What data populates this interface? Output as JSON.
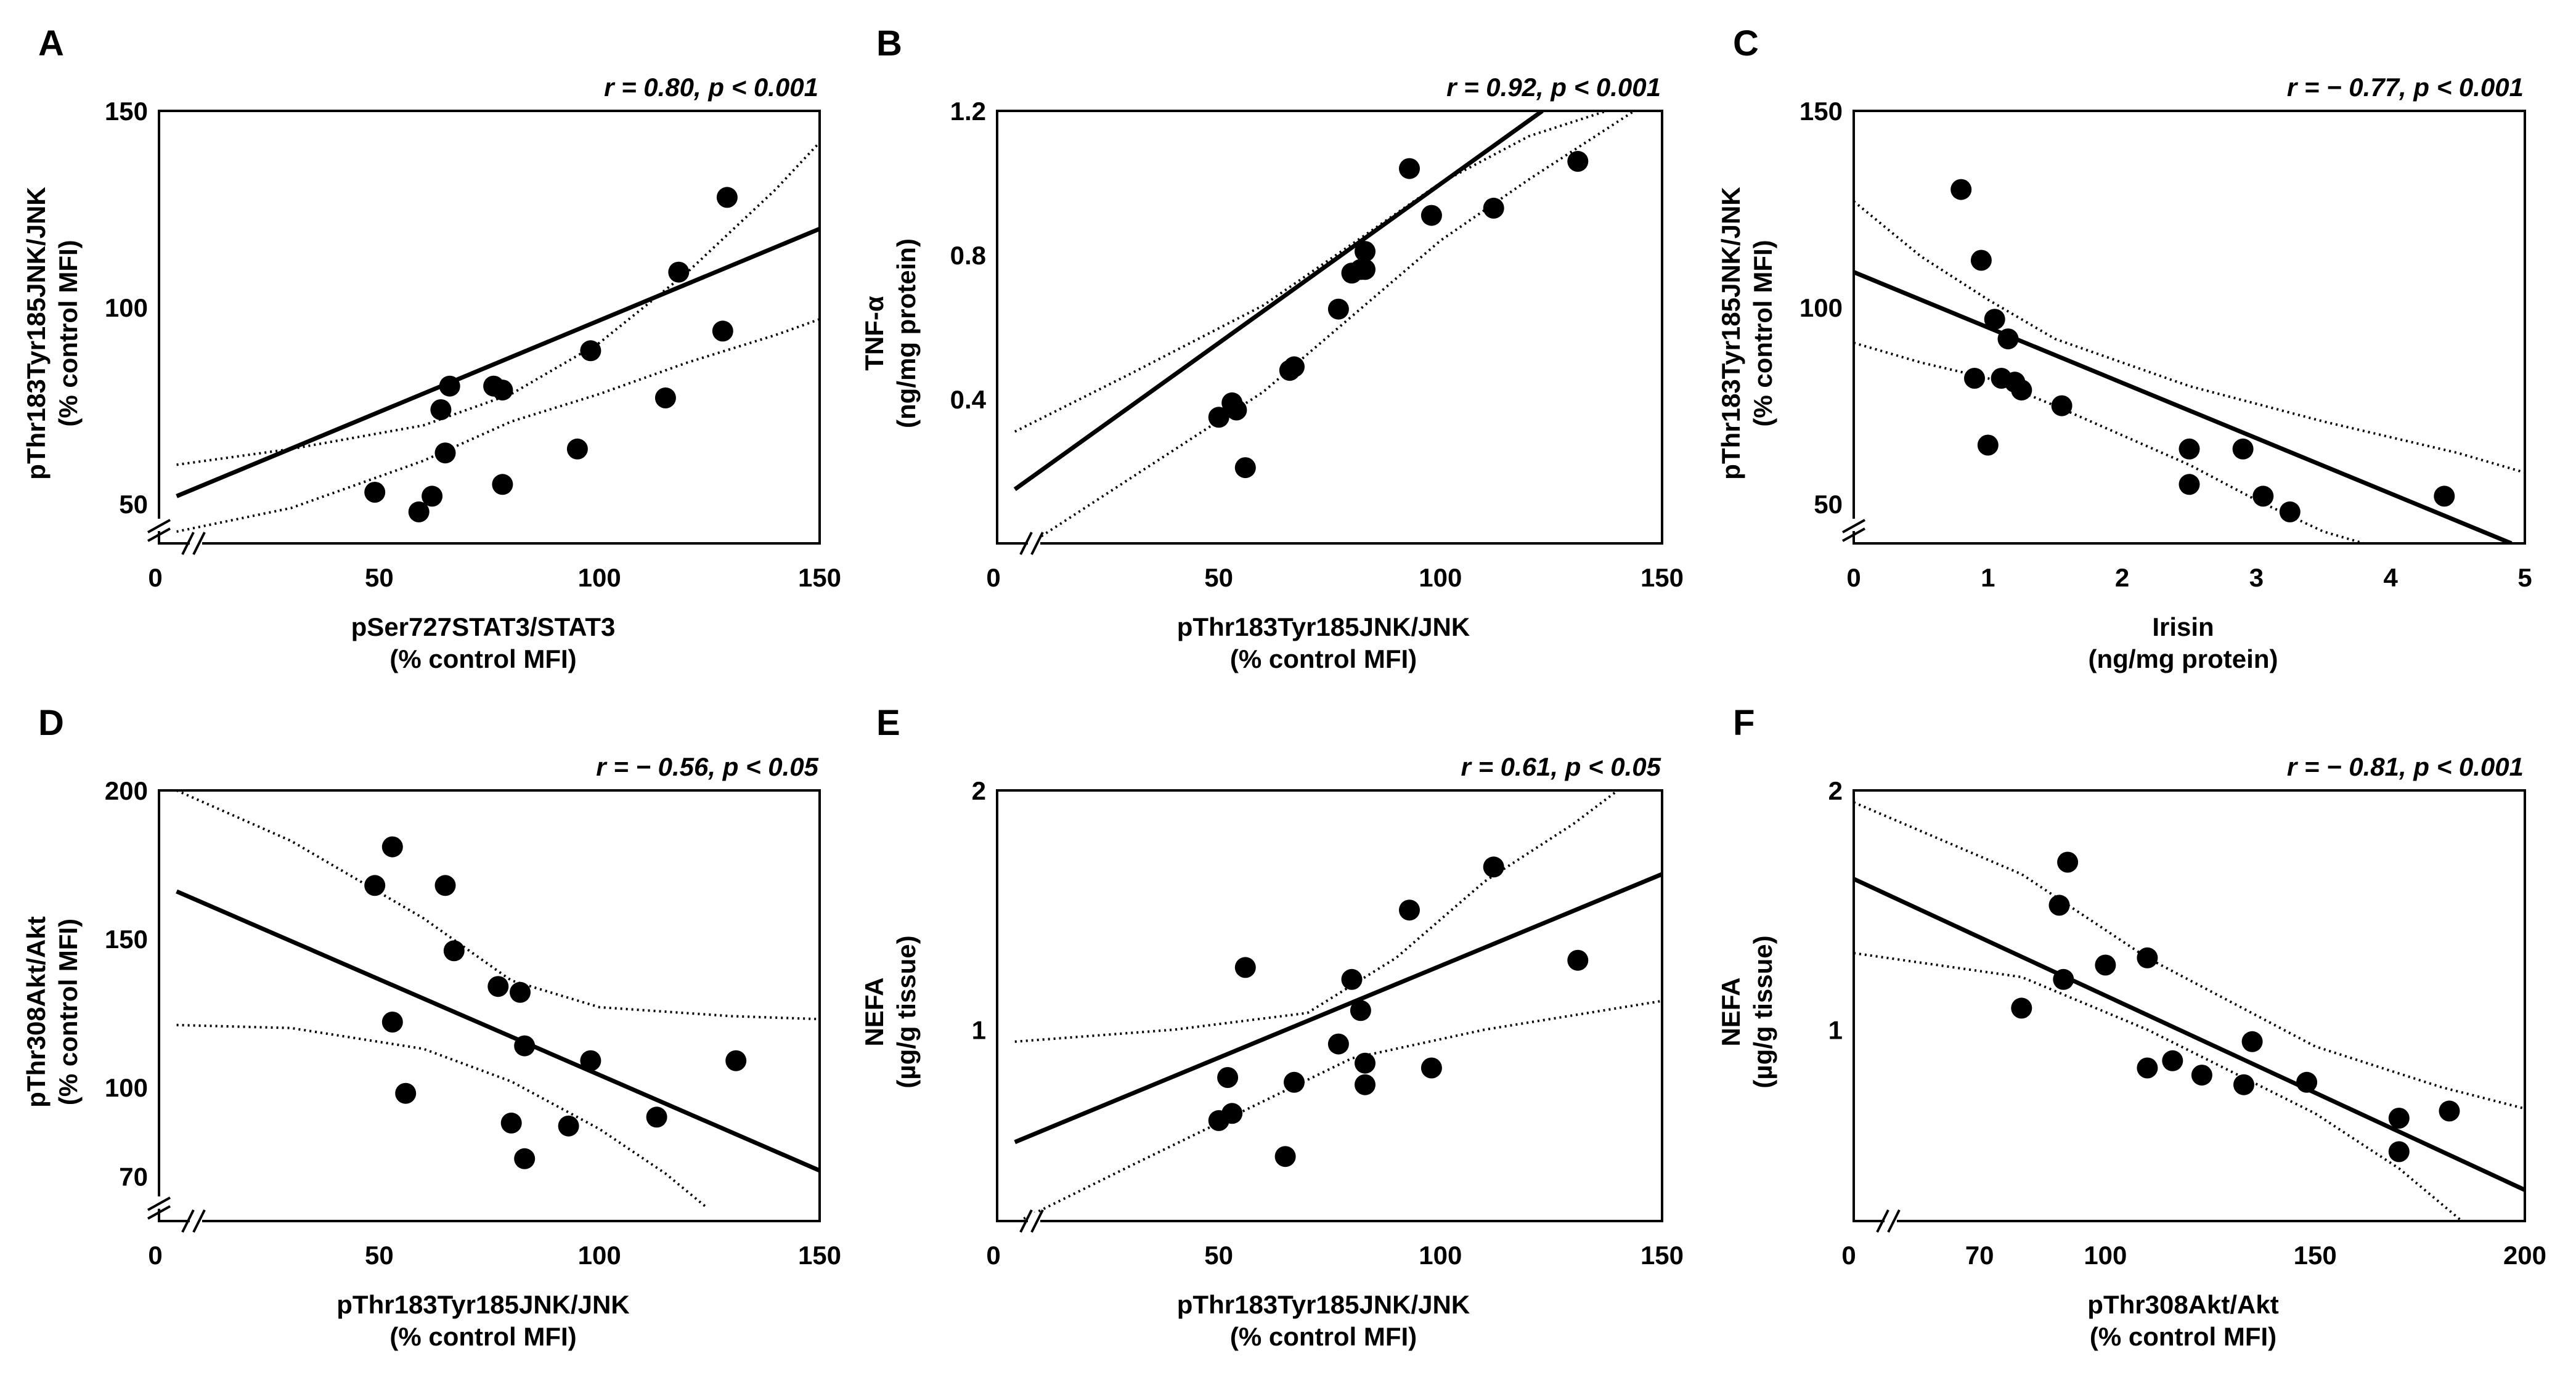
{
  "chart_data": [
    {
      "type": "scatter",
      "panel_label": "A",
      "stat": "r = 0.80, p < 0.001",
      "xlabel": [
        "pSer727STAT3/STAT3",
        "(% control MFI)"
      ],
      "ylabel": [
        "pThr183Tyr185JNK/JNK",
        "(% control MFI)"
      ],
      "xlim": [
        0,
        150
      ],
      "ylim": [
        40,
        150
      ],
      "xticks": [
        0,
        50,
        100,
        150
      ],
      "yticks": [
        50,
        100,
        150
      ],
      "x_break": true,
      "y_break": true,
      "x": [
        49,
        59,
        62,
        64,
        65,
        66,
        76,
        78,
        78,
        95,
        98,
        115,
        118,
        128,
        129
      ],
      "y": [
        53,
        48,
        52,
        74,
        63,
        80,
        80,
        79,
        55,
        64,
        89,
        77,
        109,
        94,
        128
      ],
      "fit": [
        [
          4,
          52
        ],
        [
          150,
          120
        ]
      ],
      "ci_upper": [
        [
          4,
          60
        ],
        [
          30,
          64
        ],
        [
          60,
          70
        ],
        [
          80,
          78
        ],
        [
          100,
          91
        ],
        [
          120,
          109
        ],
        [
          140,
          130
        ],
        [
          150,
          142
        ]
      ],
      "ci_lower": [
        [
          4,
          43
        ],
        [
          30,
          49
        ],
        [
          60,
          61
        ],
        [
          80,
          71
        ],
        [
          100,
          78
        ],
        [
          120,
          86
        ],
        [
          140,
          93
        ],
        [
          150,
          97
        ]
      ]
    },
    {
      "type": "scatter",
      "panel_label": "B",
      "stat": "r = 0.92, p < 0.001",
      "xlabel": [
        "pThr183Tyr185JNK/JNK",
        "(% control MFI)"
      ],
      "ylabel": [
        "TNF-α",
        "(ng/mg protein)"
      ],
      "xlim": [
        0,
        150
      ],
      "ylim": [
        0.0,
        1.2
      ],
      "xticks": [
        0,
        50,
        100,
        150
      ],
      "yticks": [
        0.4,
        0.8,
        1.2
      ],
      "x_break": true,
      "y_break": false,
      "x": [
        50,
        53,
        54,
        56,
        66,
        67,
        77,
        80,
        82,
        83,
        83,
        93,
        98,
        112,
        131
      ],
      "y": [
        0.35,
        0.39,
        0.37,
        0.21,
        0.48,
        0.49,
        0.65,
        0.75,
        0.76,
        0.81,
        0.76,
        1.04,
        0.91,
        0.93,
        1.06
      ],
      "fit": [
        [
          4,
          0.15
        ],
        [
          123,
          1.2
        ]
      ],
      "ci_upper": [
        [
          4,
          0.31
        ],
        [
          30,
          0.47
        ],
        [
          60,
          0.66
        ],
        [
          80,
          0.83
        ],
        [
          100,
          1.0
        ],
        [
          120,
          1.13
        ],
        [
          140,
          1.21
        ]
      ],
      "ci_lower": [
        [
          10,
          0.02
        ],
        [
          30,
          0.18
        ],
        [
          60,
          0.42
        ],
        [
          80,
          0.63
        ],
        [
          100,
          0.84
        ],
        [
          120,
          1.01
        ],
        [
          145,
          1.21
        ]
      ]
    },
    {
      "type": "scatter",
      "panel_label": "C",
      "stat": "r = − 0.77, p < 0.001",
      "xlabel": [
        "Irisin",
        "(ng/mg protein)"
      ],
      "ylabel": [
        "pThr183Tyr185JNK/JNK",
        "(% control MFI)"
      ],
      "xlim": [
        0,
        5
      ],
      "ylim": [
        40,
        150
      ],
      "xticks": [
        0,
        1,
        2,
        3,
        4,
        5
      ],
      "yticks": [
        50,
        100,
        150
      ],
      "x_break": false,
      "y_break": true,
      "x": [
        0.8,
        0.9,
        0.95,
        1.0,
        1.05,
        1.1,
        1.15,
        1.2,
        1.25,
        1.55,
        2.5,
        2.5,
        2.9,
        3.05,
        3.25,
        4.4
      ],
      "y": [
        130,
        82,
        112,
        65,
        97,
        82,
        92,
        81,
        79,
        75,
        55,
        64,
        64,
        52,
        48,
        52
      ],
      "fit": [
        [
          0,
          109
        ],
        [
          4.9,
          40
        ]
      ],
      "ci_upper": [
        [
          0,
          127
        ],
        [
          0.5,
          113
        ],
        [
          1.0,
          102
        ],
        [
          1.5,
          92
        ],
        [
          2.5,
          80
        ],
        [
          3.5,
          71
        ],
        [
          4.5,
          63
        ],
        [
          5,
          58
        ]
      ],
      "ci_lower": [
        [
          0,
          91
        ],
        [
          0.5,
          86
        ],
        [
          1.0,
          82
        ],
        [
          1.5,
          75
        ],
        [
          2.5,
          60
        ],
        [
          3.0,
          51
        ],
        [
          3.5,
          43
        ],
        [
          3.8,
          40
        ]
      ]
    },
    {
      "type": "scatter",
      "panel_label": "D",
      "stat": "r = − 0.56, p < 0.05",
      "xlabel": [
        "pThr183Tyr185JNK/JNK",
        "(% control MFI)"
      ],
      "ylabel": [
        "pThr308Akt/Akt",
        "(% control MFI)"
      ],
      "xlim": [
        0,
        150
      ],
      "ylim": [
        55,
        200
      ],
      "xticks": [
        0,
        50,
        100,
        150
      ],
      "yticks": [
        70,
        100,
        150,
        200
      ],
      "x_break": true,
      "y_break": true,
      "x": [
        49,
        53,
        53,
        56,
        65,
        67,
        77,
        80,
        82,
        83,
        83,
        93,
        98,
        113,
        131
      ],
      "y": [
        168,
        181,
        122,
        98,
        168,
        146,
        134,
        88,
        132,
        114,
        76,
        87,
        109,
        90,
        109
      ],
      "fit": [
        [
          4,
          166
        ],
        [
          150,
          72
        ]
      ],
      "ci_upper": [
        [
          4,
          200
        ],
        [
          30,
          183
        ],
        [
          60,
          157
        ],
        [
          80,
          136
        ],
        [
          100,
          127
        ],
        [
          130,
          124
        ],
        [
          150,
          123
        ]
      ],
      "ci_lower": [
        [
          4,
          121
        ],
        [
          30,
          120
        ],
        [
          60,
          113
        ],
        [
          80,
          102
        ],
        [
          100,
          86
        ],
        [
          115,
          71
        ],
        [
          124,
          60
        ]
      ]
    },
    {
      "type": "scatter",
      "panel_label": "E",
      "stat": "r = 0.61, p < 0.05",
      "xlabel": [
        "pThr183Tyr185JNK/JNK",
        "(% control MFI)"
      ],
      "ylabel": [
        "NEFA",
        "(µg/g tissue)"
      ],
      "xlim": [
        0,
        150
      ],
      "ylim": [
        0.2,
        2.0
      ],
      "xticks": [
        0,
        50,
        100,
        150
      ],
      "yticks": [
        1,
        2
      ],
      "x_break": true,
      "y_break": false,
      "x": [
        50,
        52,
        53,
        56,
        65,
        67,
        77,
        80,
        82,
        83,
        83,
        93,
        98,
        112,
        131
      ],
      "y": [
        0.62,
        0.8,
        0.65,
        1.26,
        0.47,
        0.78,
        0.94,
        1.21,
        1.08,
        0.86,
        0.77,
        1.5,
        0.84,
        1.68,
        1.29
      ],
      "fit": [
        [
          4,
          0.53
        ],
        [
          150,
          1.65
        ]
      ],
      "ci_upper": [
        [
          4,
          0.95
        ],
        [
          40,
          1.0
        ],
        [
          70,
          1.07
        ],
        [
          90,
          1.3
        ],
        [
          110,
          1.62
        ],
        [
          130,
          1.86
        ],
        [
          140,
          2.0
        ]
      ],
      "ci_lower": [
        [
          6,
          0.21
        ],
        [
          30,
          0.43
        ],
        [
          60,
          0.7
        ],
        [
          80,
          0.88
        ],
        [
          110,
          1.0
        ],
        [
          150,
          1.12
        ]
      ]
    },
    {
      "type": "scatter",
      "panel_label": "F",
      "stat": "r = − 0.81, p < 0.001",
      "xlabel": [
        "pThr308Akt/Akt",
        "(% control MFI)"
      ],
      "ylabel": [
        "NEFA",
        "(µg/g tissue)"
      ],
      "xlim": [
        40,
        200
      ],
      "ylim": [
        0.2,
        2.0
      ],
      "xticks": [
        70,
        100,
        150,
        200
      ],
      "ytick_zero": "0",
      "yticks": [
        1,
        2
      ],
      "x_break": true,
      "y_break": false,
      "x": [
        80,
        89,
        90,
        91,
        100,
        110,
        110,
        116,
        123,
        133,
        135,
        148,
        170,
        170,
        182
      ],
      "y": [
        1.09,
        1.52,
        1.21,
        1.7,
        1.27,
        0.84,
        1.3,
        0.87,
        0.81,
        0.77,
        0.95,
        0.78,
        0.63,
        0.49,
        0.66
      ],
      "fit": [
        [
          40,
          1.63
        ],
        [
          200,
          0.33
        ]
      ],
      "ci_upper": [
        [
          40,
          1.95
        ],
        [
          80,
          1.65
        ],
        [
          110,
          1.3
        ],
        [
          150,
          0.93
        ],
        [
          180,
          0.76
        ],
        [
          200,
          0.67
        ]
      ],
      "ci_lower": [
        [
          40,
          1.32
        ],
        [
          80,
          1.22
        ],
        [
          110,
          1.0
        ],
        [
          150,
          0.65
        ],
        [
          170,
          0.42
        ],
        [
          185,
          0.2
        ]
      ]
    }
  ]
}
